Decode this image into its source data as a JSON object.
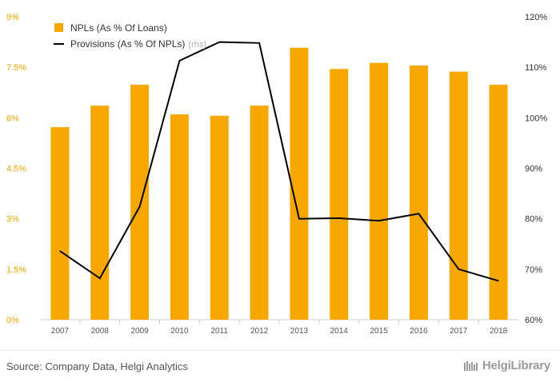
{
  "chart_data": {
    "type": "bar+line",
    "categories": [
      "2007",
      "2008",
      "2009",
      "2010",
      "2011",
      "2012",
      "2013",
      "2014",
      "2015",
      "2016",
      "2017",
      "2018"
    ],
    "series": [
      {
        "name": "NPLs (As % Of Loans)",
        "type": "bar",
        "axis": "left",
        "values": [
          5.72,
          6.36,
          6.98,
          6.1,
          6.06,
          6.36,
          8.08,
          7.45,
          7.63,
          7.55,
          7.37,
          6.98
        ]
      },
      {
        "name": "Provisions (As % Of NPLs)",
        "name_suffix": "(rhs)",
        "type": "line",
        "axis": "right",
        "values": [
          73.6,
          68.2,
          82.4,
          111.3,
          115.0,
          114.8,
          80.0,
          80.1,
          79.6,
          81.0,
          70.0,
          67.7
        ]
      }
    ],
    "y_left": {
      "min": 0,
      "max": 9,
      "ticks": [
        "0%",
        "1.5%",
        "3%",
        "4.5%",
        "6%",
        "7.5%",
        "9%"
      ]
    },
    "y_right": {
      "min": 60,
      "max": 120,
      "ticks": [
        "60%",
        "70%",
        "80%",
        "90%",
        "100%",
        "110%",
        "120%"
      ]
    },
    "legend_position": "top-left",
    "grid": false,
    "colors": {
      "bar": "#f7a800",
      "line": "#000000",
      "left_ticks": "#f0a500",
      "right_ticks": "#333333"
    }
  },
  "footer": {
    "source": "Source: Company Data, Helgi Analytics",
    "brand": "HelgiLibrary"
  }
}
